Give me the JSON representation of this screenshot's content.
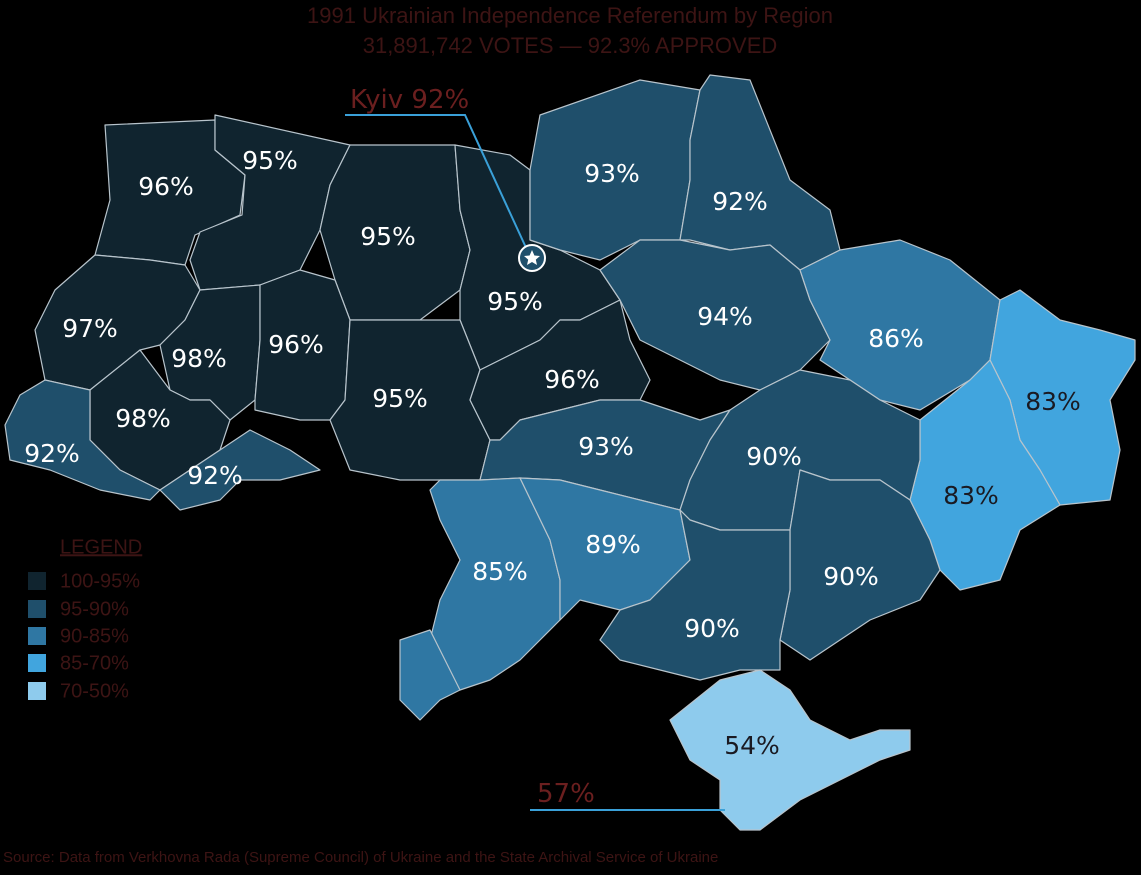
{
  "title": "1991 Ukrainian Independence Referendum by Region",
  "subtitle": "31,891,742 VOTES — 92.3% APPROVED",
  "kyiv_label": "Kyiv 92%",
  "sevastopol_label": "57%",
  "region_labels": [
    "96%",
    "95%",
    "95%",
    "97%",
    "98%",
    "96%",
    "95%",
    "95%",
    "96%",
    "98%",
    "92%",
    "92%",
    "93%",
    "92%",
    "94%",
    "86%",
    "83%",
    "83%",
    "93%",
    "90%",
    "85%",
    "89%",
    "90%",
    "90%",
    "54%"
  ],
  "legend": {
    "title": "LEGEND",
    "items": [
      "100-95%",
      "95-90%",
      "90-85%",
      "85-70%",
      "70-50%"
    ]
  },
  "source": "Source: Data from Verkhovna Rada (Supreme Council) of Ukraine and the State Archival Service of Ukraine"
}
